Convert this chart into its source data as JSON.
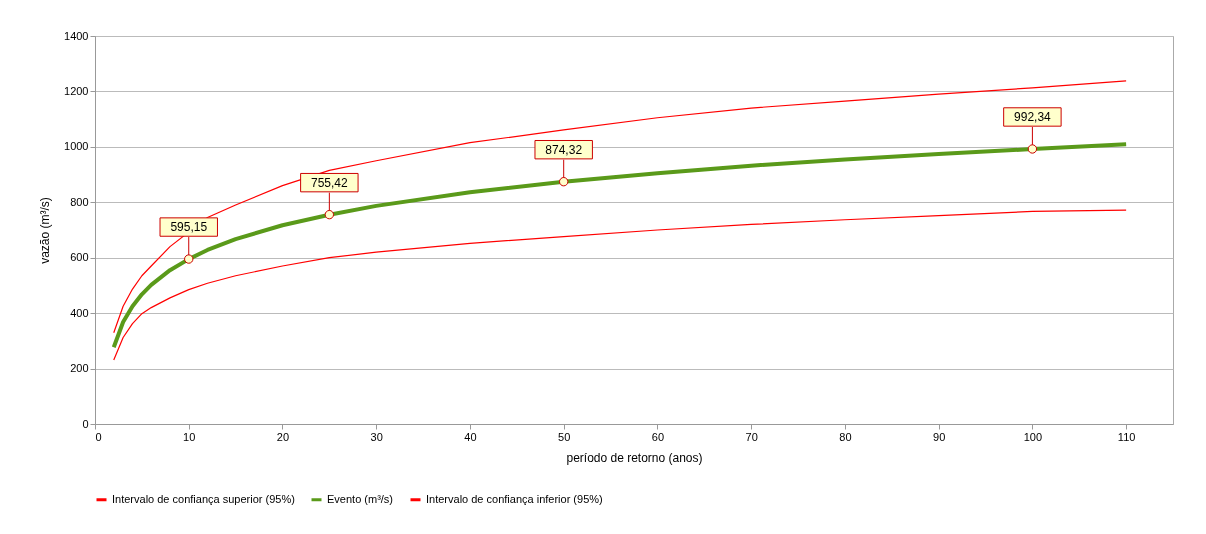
{
  "chart_data": {
    "type": "line",
    "xlabel": "período de retorno (anos)",
    "ylabel": "vazão (m³/s)",
    "xlim": [
      0,
      115
    ],
    "xticks": [
      0,
      10,
      20,
      30,
      40,
      50,
      60,
      70,
      80,
      90,
      100,
      110
    ],
    "ylim": [
      0,
      1400
    ],
    "yticks": [
      0,
      200,
      400,
      600,
      800,
      1000,
      1200,
      1400
    ],
    "grid": "y",
    "legend": "bottom",
    "line_style": "solid",
    "x": [
      2,
      3,
      4,
      5,
      6,
      8,
      10,
      12,
      15,
      20,
      25,
      30,
      40,
      50,
      60,
      70,
      80,
      90,
      100,
      110
    ],
    "series": [
      {
        "name": "Intervalo de confiança superior (95%)",
        "color": "#ff0000",
        "x": [
          2,
          3,
          4,
          5,
          6,
          8,
          12,
          15,
          20,
          25,
          30,
          40,
          50,
          60,
          70,
          80,
          90,
          100,
          110
        ],
        "values": [
          329,
          425,
          487,
          535,
          570,
          640,
          745,
          790,
          860,
          915,
          950,
          1015,
          1061,
          1105,
          1140,
          1165,
          1190,
          1213,
          1238
        ]
      },
      {
        "name": "Evento (m³/s)",
        "color": "#5a9a1a",
        "values": [
          277,
          368,
          425,
          468,
          502,
          555,
          595,
          628,
          667,
          717,
          755,
          787,
          836,
          874,
          905,
          932,
          954,
          974,
          992,
          1009
        ]
      },
      {
        "name": "Intervalo de confiança inferior (95%)",
        "color": "#ff0000",
        "values": [
          231,
          312,
          362,
          398,
          420,
          455,
          485,
          508,
          535,
          570,
          600,
          620,
          652,
          676,
          700,
          720,
          737,
          752,
          767,
          772
        ]
      }
    ],
    "annotations": [
      {
        "text": "595,15",
        "x": 10,
        "y": 595.15
      },
      {
        "text": "755,42",
        "x": 25,
        "y": 755.42
      },
      {
        "text": "874,32",
        "x": 50,
        "y": 874.32
      },
      {
        "text": "992,34",
        "x": 100,
        "y": 992.34
      }
    ]
  }
}
